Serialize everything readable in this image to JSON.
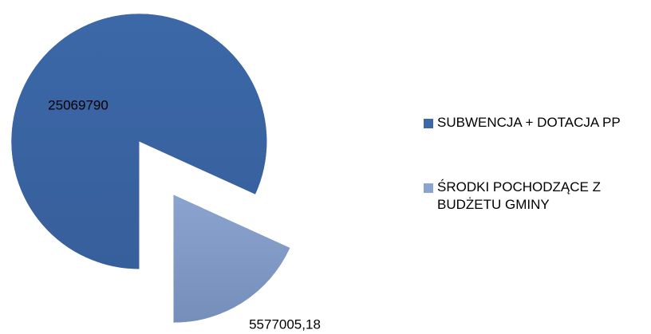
{
  "chart_data": {
    "type": "pie",
    "categories": [
      "SUBWENCJA + DOTACJA PP",
      "ŚRODKI POCHODZĄCE Z BUDŻETU GMINY"
    ],
    "values": [
      25069790,
      5577005.18
    ],
    "value_labels": [
      "25069790",
      "5577005,18"
    ],
    "colors": [
      "#3c68a8",
      "#8ba4cf"
    ],
    "legend": "right"
  }
}
